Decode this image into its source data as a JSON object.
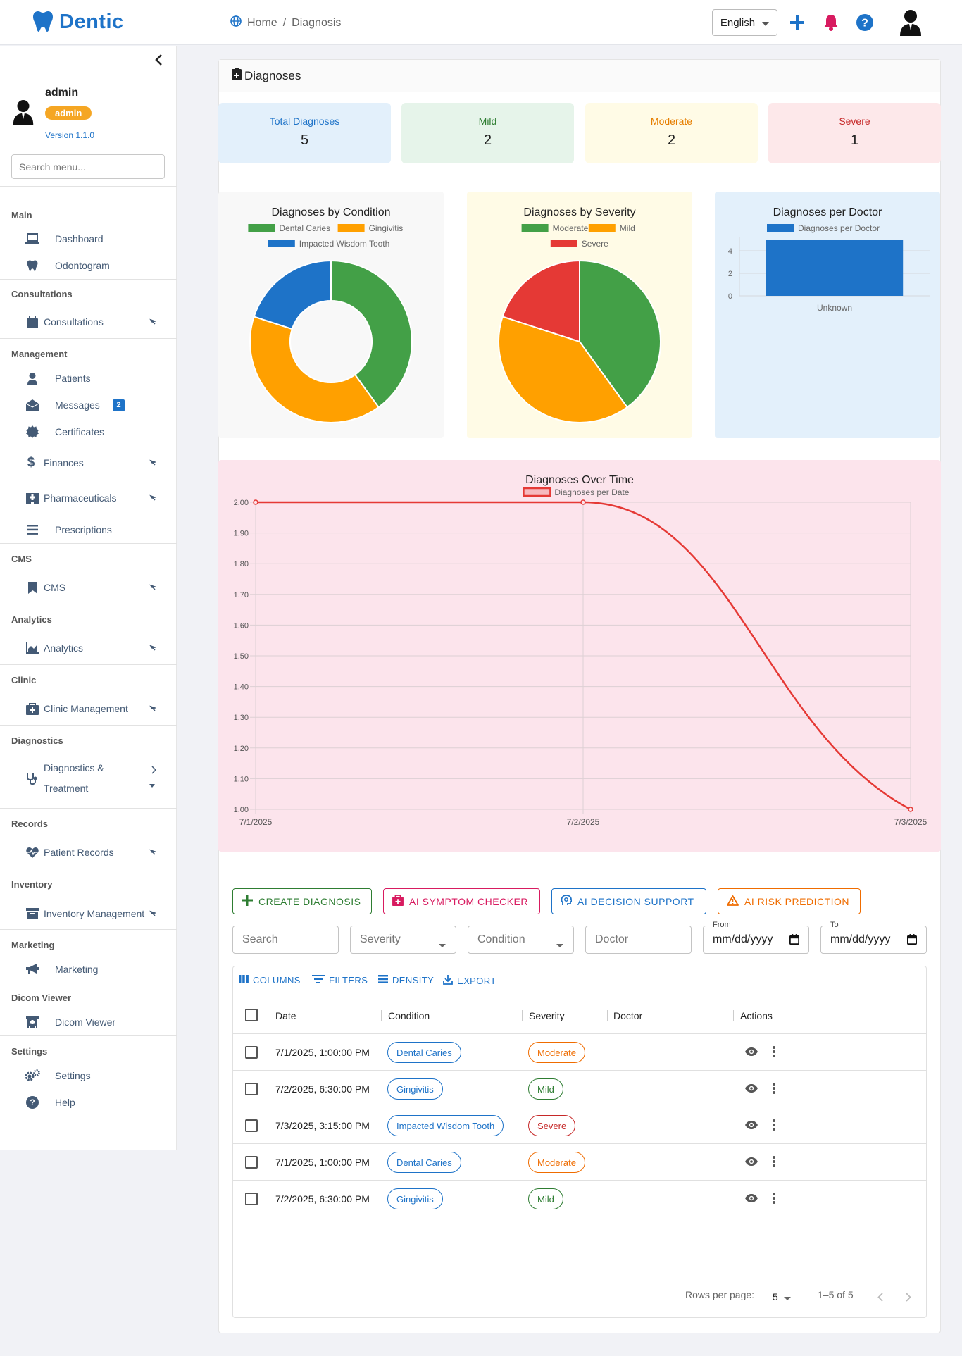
{
  "header": {
    "app_name": "Dentic",
    "breadcrumb_home": "Home",
    "breadcrumb_sep": "/",
    "breadcrumb_current": "Diagnosis",
    "language": "English"
  },
  "sidebar": {
    "user_name": "admin",
    "user_role": "admin",
    "version": "Version 1.1.0",
    "search_placeholder": "Search menu...",
    "sections": {
      "main": "Main",
      "consultations": "Consultations",
      "management": "Management",
      "cms": "CMS",
      "analytics": "Analytics",
      "clinic": "Clinic",
      "diagnostics": "Diagnostics",
      "records": "Records",
      "inventory": "Inventory",
      "marketing": "Marketing",
      "dicom": "Dicom Viewer",
      "settings": "Settings"
    },
    "items": {
      "dashboard": "Dashboard",
      "odontogram": "Odontogram",
      "consultations": "Consultations",
      "patients": "Patients",
      "messages": "Messages",
      "messages_badge": "2",
      "certificates": "Certificates",
      "finances": "Finances",
      "pharmaceuticals": "Pharmaceuticals",
      "prescriptions": "Prescriptions",
      "cms": "CMS",
      "analytics": "Analytics",
      "clinic_management": "Clinic Management",
      "diagnostics_line1": "Diagnostics &",
      "diagnostics_line2": "Treatment",
      "patient_records": "Patient Records",
      "inventory_management": "Inventory Management",
      "marketing": "Marketing",
      "dicom_viewer": "Dicom Viewer",
      "settings": "Settings",
      "help": "Help"
    }
  },
  "page": {
    "title": "Diagnoses"
  },
  "stats": [
    {
      "label": "Total Diagnoses",
      "value": "5",
      "bg": "#e3f0fb",
      "color": "#1e73c8"
    },
    {
      "label": "Mild",
      "value": "2",
      "bg": "#e6f4ea",
      "color": "#2e7d32"
    },
    {
      "label": "Moderate",
      "value": "2",
      "bg": "#fffbe6",
      "color": "#e67e00"
    },
    {
      "label": "Severe",
      "value": "1",
      "bg": "#fde8ea",
      "color": "#c62828"
    }
  ],
  "chart_data": [
    {
      "type": "pie",
      "variant": "doughnut",
      "title": "Diagnoses by Condition",
      "categories": [
        "Dental Caries",
        "Gingivitis",
        "Impacted Wisdom Tooth"
      ],
      "values": [
        2,
        2,
        1
      ],
      "colors": [
        "#43a047",
        "#ffa000",
        "#1e73c8"
      ]
    },
    {
      "type": "pie",
      "title": "Diagnoses by Severity",
      "categories": [
        "Moderate",
        "Mild",
        "Severe"
      ],
      "values": [
        2,
        2,
        1
      ],
      "colors": [
        "#43a047",
        "#ffa000",
        "#e53935"
      ]
    },
    {
      "type": "bar",
      "title": "Diagnoses per Doctor",
      "categories": [
        "Unknown"
      ],
      "series": [
        {
          "name": "Diagnoses per Doctor",
          "values": [
            5
          ]
        }
      ],
      "yticks": [
        "0",
        "2",
        "4"
      ],
      "ylim": [
        0,
        5
      ],
      "color": "#1e73c8"
    },
    {
      "type": "line",
      "title": "Diagnoses Over Time",
      "x": [
        "7/1/2025",
        "7/2/2025",
        "7/3/2025"
      ],
      "series": [
        {
          "name": "Diagnoses per Date",
          "values": [
            2,
            2,
            1
          ]
        }
      ],
      "ylim": [
        1,
        2
      ],
      "yticks": [
        "2.00",
        "1.90",
        "1.80",
        "1.70",
        "1.60",
        "1.50",
        "1.40",
        "1.30",
        "1.20",
        "1.10",
        "1.00"
      ],
      "color": "#e53935",
      "grid": true
    }
  ],
  "actions": {
    "create": "CREATE DIAGNOSIS",
    "symptom": "AI SYMPTOM CHECKER",
    "decision": "AI DECISION SUPPORT",
    "risk": "AI RISK PREDICTION"
  },
  "filters": {
    "search": "Search",
    "severity": "Severity",
    "condition": "Condition",
    "doctor": "Doctor",
    "from_label": "From",
    "to_label": "To",
    "date_placeholder": "mm/dd/yyyy"
  },
  "grid": {
    "toolbar": {
      "columns": "COLUMNS",
      "filters": "FILTERS",
      "density": "DENSITY",
      "export": "EXPORT"
    },
    "columns": {
      "date": "Date",
      "condition": "Condition",
      "severity": "Severity",
      "doctor": "Doctor",
      "actions": "Actions"
    },
    "rows": [
      {
        "date": "7/1/2025, 1:00:00 PM",
        "condition": "Dental Caries",
        "severity": "Moderate",
        "doctor": ""
      },
      {
        "date": "7/2/2025, 6:30:00 PM",
        "condition": "Gingivitis",
        "severity": "Mild",
        "doctor": ""
      },
      {
        "date": "7/3/2025, 3:15:00 PM",
        "condition": "Impacted Wisdom Tooth",
        "severity": "Severe",
        "doctor": ""
      },
      {
        "date": "7/1/2025, 1:00:00 PM",
        "condition": "Dental Caries",
        "severity": "Moderate",
        "doctor": ""
      },
      {
        "date": "7/2/2025, 6:30:00 PM",
        "condition": "Gingivitis",
        "severity": "Mild",
        "doctor": ""
      }
    ],
    "footer": {
      "rows_per_page_label": "Rows per page:",
      "rows_per_page": "5",
      "range": "1–5 of 5"
    }
  }
}
